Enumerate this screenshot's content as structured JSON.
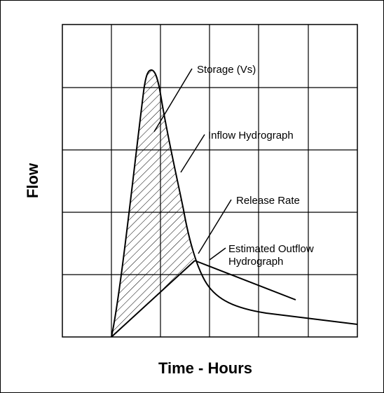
{
  "diagram": {
    "xlabel": "Time - Hours",
    "ylabel": "Flow",
    "annotations": {
      "storage": "Storage (Vs)",
      "inflow": "Inflow Hydrograph",
      "release": "Release Rate",
      "outflow_line1": "Estimated Outflow",
      "outflow_line2": "Hydrograph"
    }
  }
}
